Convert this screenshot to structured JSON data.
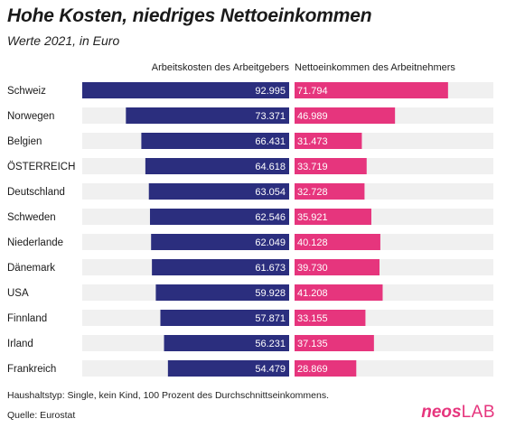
{
  "header": {
    "title": "Hohe Kosten, niedriges Nettoeinkommen",
    "subtitle": "Werte 2021, in Euro"
  },
  "footer": {
    "note": "Haushaltstyp: Single, kein Kind, 100 Prozent des Durchschnittseinkommens.",
    "source": "Quelle: Eurostat",
    "brand_a": "neos",
    "brand_b": "LAB"
  },
  "colors": {
    "left_bar": "#2b2e7e",
    "right_bar": "#e6357d",
    "track": "#f0f0f0"
  },
  "chart_data": {
    "type": "bar",
    "title": "Hohe Kosten, niedriges Nettoeinkommen",
    "subtitle": "Werte 2021, in Euro",
    "categories": [
      "Schweiz",
      "Norwegen",
      "Belgien",
      "ÖSTERREICH",
      "Deutschland",
      "Schweden",
      "Niederlande",
      "Dänemark",
      "USA",
      "Finnland",
      "Irland",
      "Frankreich"
    ],
    "series": [
      {
        "name": "Arbeitskosten des Arbeitgebers",
        "values": [
          92995,
          73371,
          66431,
          64618,
          63054,
          62546,
          62049,
          61673,
          59928,
          57871,
          56231,
          54479
        ],
        "labels": [
          "92.995",
          "73.371",
          "66.431",
          "64.618",
          "63.054",
          "62.546",
          "62.049",
          "61.673",
          "59.928",
          "57.871",
          "56.231",
          "54.479"
        ]
      },
      {
        "name": "Nettoeinkommen des Arbeitnehmers",
        "values": [
          71794,
          46989,
          31473,
          33719,
          32728,
          35921,
          40128,
          39730,
          41208,
          33155,
          37135,
          28869
        ],
        "labels": [
          "71.794",
          "46.989",
          "31.473",
          "33.719",
          "32.728",
          "35.921",
          "40.128",
          "39.730",
          "41.208",
          "33.155",
          "37.135",
          "28.869"
        ]
      }
    ],
    "xlim": [
      0,
      92995
    ],
    "grid": false,
    "legend": "top"
  }
}
